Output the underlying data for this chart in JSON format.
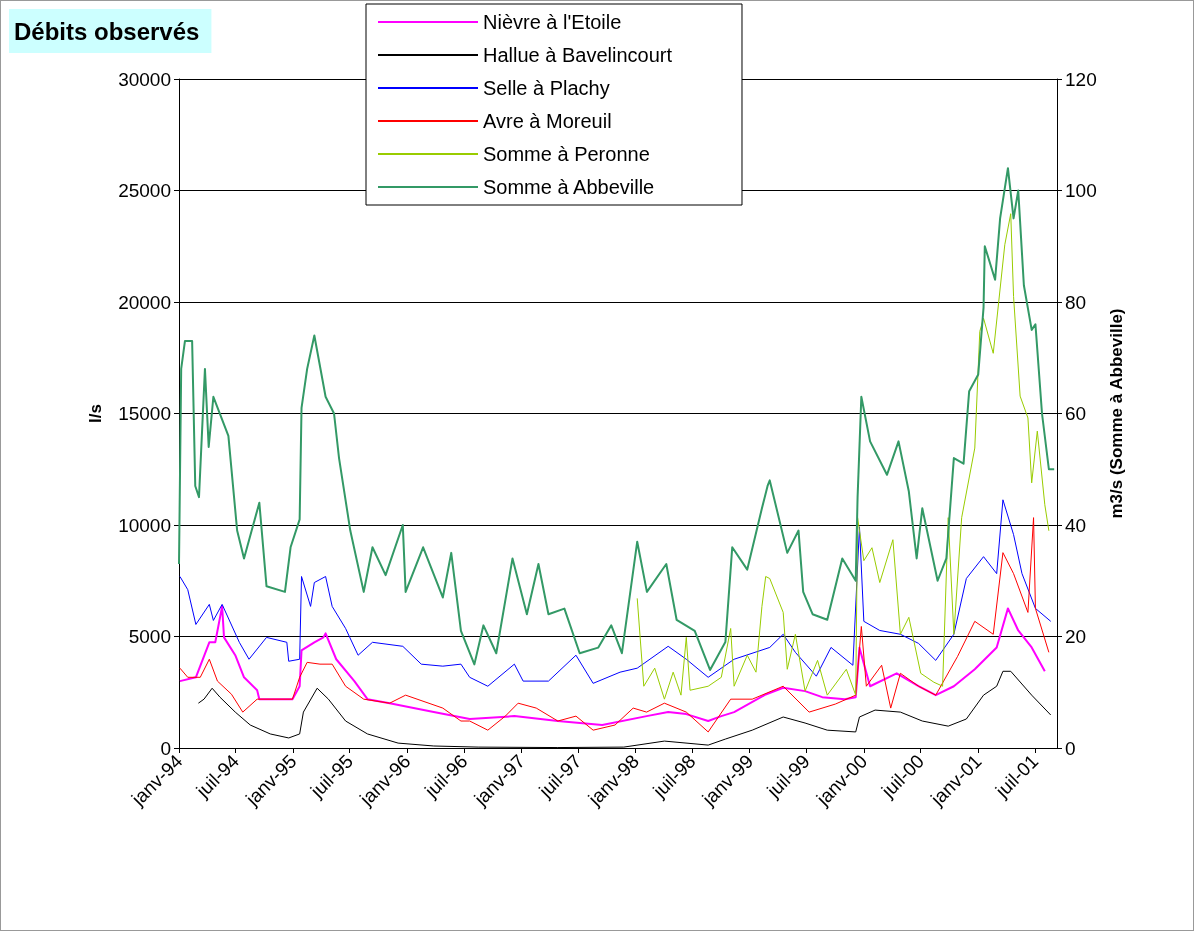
{
  "chart_data": {
    "type": "line",
    "title": "Débits observés",
    "ylabel": "l/s",
    "y2label": "m3/s (Somme à Abbeville)",
    "xlim": [
      "1994-01-01",
      "2001-09-10"
    ],
    "xticks": [
      {
        "value": "1994-01-01",
        "label": "janv-94"
      },
      {
        "value": "1994-07-01",
        "label": "juil-94"
      },
      {
        "value": "1995-01-01",
        "label": "janv-95"
      },
      {
        "value": "1995-07-01",
        "label": "juil-95"
      },
      {
        "value": "1996-01-01",
        "label": "janv-96"
      },
      {
        "value": "1996-07-01",
        "label": "juil-96"
      },
      {
        "value": "1997-01-01",
        "label": "janv-97"
      },
      {
        "value": "1997-07-01",
        "label": "juil-97"
      },
      {
        "value": "1998-01-01",
        "label": "janv-98"
      },
      {
        "value": "1998-07-01",
        "label": "juil-98"
      },
      {
        "value": "1999-01-01",
        "label": "janv-99"
      },
      {
        "value": "1999-07-01",
        "label": "juil-99"
      },
      {
        "value": "2000-01-01",
        "label": "janv-00"
      },
      {
        "value": "2000-07-01",
        "label": "juil-00"
      },
      {
        "value": "2001-01-01",
        "label": "janv-01"
      },
      {
        "value": "2001-07-01",
        "label": "juil-01"
      }
    ],
    "ylim": [
      0,
      30000
    ],
    "yticks": [
      0,
      5000,
      10000,
      15000,
      20000,
      25000,
      30000
    ],
    "y2lim": [
      0,
      120
    ],
    "y2ticks": [
      0,
      20,
      40,
      60,
      80,
      100,
      120
    ],
    "grid": "y",
    "legend": "top",
    "marker": "none",
    "line_style": "solid",
    "series": [
      {
        "name": "Nièvre à l'Etoile",
        "color": "#ff00ff",
        "x": [
          "1994-01-04",
          "1994-02-24",
          "1994-04-08",
          "1994-04-27",
          "1994-05-19",
          "1994-05-25",
          "1994-06-30",
          "1994-07-28",
          "1994-09-08",
          "1994-09-15",
          "1994-12-30",
          "1995-01-22",
          "1995-01-28",
          "1995-03-10",
          "1995-04-08",
          "1995-04-15",
          "1995-05-19",
          "1995-07-16",
          "1995-08-27",
          "1995-11-06",
          "1996-03-26",
          "1996-07-19",
          "1996-12-09",
          "1997-04-27",
          "1997-09-16",
          "1998-02-05",
          "1998-04-15",
          "1998-06-12",
          "1998-08-21",
          "1998-10-02",
          "1998-11-12",
          "1999-02-21",
          "1999-04-18",
          "1999-06-27",
          "1999-08-21",
          "1999-11-01",
          "1999-12-06",
          "1999-12-18",
          "2000-01-21",
          "2000-04-15",
          "2000-06-24",
          "2000-08-18",
          "2000-10-15",
          "2000-12-21",
          "2001-03-01",
          "2001-04-06",
          "2001-05-09",
          "2001-06-21",
          "2001-08-02"
        ],
        "values": [
          3000,
          3170,
          4740,
          4740,
          6350,
          4960,
          4160,
          3170,
          2590,
          2190,
          2190,
          2770,
          4380,
          4740,
          4960,
          5140,
          3980,
          3000,
          2190,
          2010,
          1610,
          1300,
          1430,
          1210,
          1030,
          1430,
          1610,
          1520,
          1210,
          1430,
          1610,
          2400,
          2700,
          2550,
          2280,
          2190,
          2280,
          4500,
          2770,
          3350,
          2770,
          2370,
          2770,
          3530,
          4510,
          6260,
          5270,
          4510,
          3440
        ]
      },
      {
        "name": "Hallue à Bavelincourt",
        "color": "#000000",
        "x": [
          "1994-03-04",
          "1994-03-22",
          "1994-04-17",
          "1994-05-12",
          "1994-06-30",
          "1994-08-17",
          "1994-10-20",
          "1994-12-18",
          "1995-01-22",
          "1995-02-03",
          "1995-03-19",
          "1995-04-24",
          "1995-06-18",
          "1995-08-27",
          "1995-12-03",
          "1996-03-26",
          "1996-08-15",
          "1997-04-27",
          "1997-11-24",
          "1998-04-03",
          "1998-08-21",
          "1998-10-15",
          "1999-01-09",
          "1999-04-18",
          "1999-06-27",
          "1999-09-06",
          "1999-12-06",
          "1999-12-18",
          "2000-02-06",
          "2000-04-27",
          "2000-07-06",
          "2000-09-27",
          "2000-11-24",
          "2001-01-18",
          "2001-03-01",
          "2001-03-21",
          "2001-04-15",
          "2001-06-21",
          "2001-08-21"
        ],
        "values": [
          2010,
          2190,
          2680,
          2280,
          1610,
          1030,
          630,
          450,
          630,
          1610,
          2680,
          2190,
          1210,
          630,
          220,
          90,
          40,
          20,
          40,
          310,
          130,
          400,
          800,
          1390,
          1120,
          800,
          720,
          1390,
          1700,
          1610,
          1210,
          980,
          1300,
          2370,
          2770,
          3440,
          3440,
          2370,
          1480
        ]
      },
      {
        "name": "Selle à Plachy",
        "color": "#0000ff",
        "x": [
          "1994-01-04",
          "1994-01-29",
          "1994-02-24",
          "1994-04-08",
          "1994-04-21",
          "1994-05-19",
          "1994-07-13",
          "1994-08-13",
          "1994-10-08",
          "1994-12-12",
          "1994-12-18",
          "1995-01-22",
          "1995-01-28",
          "1995-02-26",
          "1995-03-10",
          "1995-04-15",
          "1995-05-06",
          "1995-06-18",
          "1995-07-28",
          "1995-09-12",
          "1995-12-18",
          "1996-02-15",
          "1996-04-24",
          "1996-06-21",
          "1996-07-19",
          "1996-09-15",
          "1996-12-09",
          "1997-01-06",
          "1997-03-28",
          "1997-06-24",
          "1997-08-18",
          "1997-11-12",
          "1998-01-06",
          "1998-04-15",
          "1998-06-12",
          "1998-08-21",
          "1998-11-12",
          "1999-03-06",
          "1999-04-18",
          "1999-05-27",
          "1999-08-02",
          "1999-09-18",
          "1999-11-27",
          "1999-12-18",
          "2000-01-01",
          "2000-02-21",
          "2000-04-27",
          "2000-06-24",
          "2000-08-18",
          "2000-10-15",
          "2000-11-24",
          "2001-01-18",
          "2001-03-01",
          "2001-03-21",
          "2001-04-24",
          "2001-05-21",
          "2001-07-03",
          "2001-08-21"
        ],
        "values": [
          7690,
          7100,
          5540,
          6440,
          5720,
          6440,
          4740,
          3980,
          4960,
          4740,
          3890,
          3980,
          7690,
          6350,
          7420,
          7690,
          6350,
          5360,
          4160,
          4740,
          4560,
          3760,
          3670,
          3760,
          3170,
          2770,
          3760,
          3000,
          3000,
          4160,
          2900,
          3400,
          3580,
          4560,
          3980,
          3170,
          3980,
          4510,
          5100,
          4290,
          3220,
          4510,
          3710,
          9920,
          5680,
          5270,
          5100,
          4690,
          3930,
          5100,
          7600,
          8580,
          7820,
          11130,
          9570,
          7820,
          6260,
          5680
        ]
      },
      {
        "name": "Avre à Moreuil",
        "color": "#ff0000",
        "x": [
          "1994-01-04",
          "1994-01-29",
          "1994-03-10",
          "1994-04-08",
          "1994-05-04",
          "1994-06-18",
          "1994-07-24",
          "1994-09-08",
          "1994-12-30",
          "1995-01-22",
          "1995-02-15",
          "1995-03-28",
          "1995-05-06",
          "1995-06-18",
          "1995-08-15",
          "1995-11-06",
          "1995-12-27",
          "1996-04-24",
          "1996-06-21",
          "1996-07-19",
          "1996-09-15",
          "1996-11-10",
          "1996-12-21",
          "1997-02-17",
          "1997-04-27",
          "1997-06-24",
          "1997-08-18",
          "1997-10-27",
          "1997-12-24",
          "1998-02-05",
          "1998-04-03",
          "1998-06-12",
          "1998-08-21",
          "1998-11-01",
          "1999-01-09",
          "1999-04-18",
          "1999-07-10",
          "1999-10-02",
          "1999-12-06",
          "1999-12-24",
          "2000-01-09",
          "2000-02-27",
          "2000-03-27",
          "2000-04-27",
          "2000-06-24",
          "2000-08-18",
          "2000-10-27",
          "2000-12-21",
          "2001-02-18",
          "2001-03-21",
          "2001-04-24",
          "2001-06-09",
          "2001-06-27",
          "2001-07-03",
          "2001-08-15"
        ],
        "values": [
          3580,
          3170,
          3170,
          3980,
          3000,
          2410,
          1610,
          2190,
          2190,
          3170,
          3840,
          3760,
          3760,
          2770,
          2190,
          2010,
          2370,
          1790,
          1210,
          1210,
          800,
          1430,
          2010,
          1790,
          1210,
          1430,
          800,
          1030,
          1790,
          1610,
          2010,
          1610,
          720,
          2190,
          2190,
          2770,
          1610,
          1970,
          2370,
          5450,
          2770,
          3710,
          1790,
          3350,
          2770,
          2370,
          4110,
          5680,
          5100,
          8760,
          7820,
          6080,
          10330,
          6260,
          4290
        ]
      },
      {
        "name": "Somme à Peronne",
        "color": "#99cc00",
        "x": [
          "1998-01-06",
          "1998-01-27",
          "1998-03-03",
          "1998-04-03",
          "1998-05-01",
          "1998-05-26",
          "1998-06-12",
          "1998-06-24",
          "1998-08-21",
          "1998-10-02",
          "1998-11-01",
          "1998-11-12",
          "1998-12-24",
          "1999-01-21",
          "1999-02-09",
          "1999-02-21",
          "1999-03-06",
          "1999-04-18",
          "1999-05-01",
          "1999-05-27",
          "1999-06-27",
          "1999-08-06",
          "1999-09-06",
          "1999-11-06",
          "1999-12-06",
          "1999-12-12",
          "2000-01-01",
          "2000-01-27",
          "2000-02-21",
          "2000-04-03",
          "2000-04-27",
          "2000-05-24",
          "2000-07-01",
          "2000-08-12",
          "2000-09-09",
          "2000-09-27",
          "2000-10-15",
          "2000-11-09",
          "2000-12-21",
          "2001-01-06",
          "2001-01-18",
          "2001-02-18",
          "2001-03-27",
          "2001-04-15",
          "2001-04-24",
          "2001-05-15",
          "2001-06-09",
          "2001-06-21",
          "2001-07-09",
          "2001-08-02",
          "2001-08-15"
        ],
        "values": [
          6710,
          2770,
          3580,
          2190,
          3400,
          2370,
          4960,
          2590,
          2770,
          3170,
          5360,
          2770,
          4160,
          3400,
          6350,
          7690,
          7600,
          6080,
          3530,
          5100,
          2550,
          3930,
          2370,
          3530,
          2370,
          10330,
          8400,
          8980,
          7420,
          9340,
          5100,
          5860,
          3350,
          2950,
          2770,
          10330,
          5100,
          10330,
          13450,
          18680,
          19270,
          17700,
          22570,
          23960,
          20250,
          15780,
          14800,
          11890,
          14210,
          10910,
          9740
        ]
      },
      {
        "name": "Somme à Abbeville",
        "color": "#339966",
        "axis": "y2",
        "x": [
          "1994-01-01",
          "1994-01-08",
          "1994-01-20",
          "1994-02-12",
          "1994-02-22",
          "1994-03-06",
          "1994-03-25",
          "1994-04-06",
          "1994-04-21",
          "1994-06-08",
          "1994-07-06",
          "1994-07-28",
          "1994-09-15",
          "1994-10-08",
          "1994-12-06",
          "1994-12-24",
          "1995-01-22",
          "1995-01-28",
          "1995-02-15",
          "1995-03-10",
          "1995-04-15",
          "1995-05-12",
          "1995-05-28",
          "1995-07-03",
          "1995-08-15",
          "1995-09-12",
          "1995-10-24",
          "1995-12-18",
          "1995-12-27",
          "1996-02-21",
          "1996-04-24",
          "1996-05-21",
          "1996-06-21",
          "1996-08-03",
          "1996-09-01",
          "1996-10-12",
          "1996-12-03",
          "1997-01-18",
          "1997-02-24",
          "1997-03-28",
          "1997-05-18",
          "1997-07-06",
          "1997-09-03",
          "1997-10-15",
          "1997-11-18",
          "1998-01-06",
          "1998-02-06",
          "1998-04-09",
          "1998-05-12",
          "1998-07-09",
          "1998-08-27",
          "1998-10-15",
          "1998-11-06",
          "1998-12-24",
          "1999-02-09",
          "1999-02-27",
          "1999-03-06",
          "1999-05-01",
          "1999-06-06",
          "1999-06-21",
          "1999-07-21",
          "1999-09-06",
          "1999-10-24",
          "1999-12-06",
          "1999-12-12",
          "1999-12-24",
          "2000-01-21",
          "2000-03-15",
          "2000-04-21",
          "2000-05-24",
          "2000-06-18",
          "2000-07-06",
          "2000-08-24",
          "2000-09-21",
          "2000-10-15",
          "2000-11-15",
          "2000-12-03",
          "2001-01-01",
          "2001-01-18",
          "2001-01-22",
          "2001-02-24",
          "2001-03-12",
          "2001-04-06",
          "2001-04-24",
          "2001-05-09",
          "2001-05-27",
          "2001-06-21",
          "2001-07-03",
          "2001-07-24",
          "2001-08-15",
          "2001-09-01"
        ],
        "values": [
          33,
          68,
          73,
          73,
          47,
          45,
          68,
          54,
          63,
          56,
          39,
          34,
          44,
          29,
          28,
          36,
          41,
          61,
          68,
          74,
          63,
          60,
          52,
          39,
          28,
          36,
          31,
          40,
          28,
          36,
          27,
          35,
          21,
          15,
          22,
          17,
          34,
          24,
          33,
          24,
          25,
          17,
          18,
          22,
          17,
          37,
          28,
          33,
          23,
          21,
          14,
          19,
          36,
          32,
          43,
          47,
          48,
          35,
          39,
          28,
          24,
          23,
          34,
          30,
          45,
          63,
          55,
          49,
          55,
          46,
          34,
          43,
          30,
          34,
          52,
          51,
          64,
          67,
          79,
          90,
          84,
          95,
          104,
          95,
          100,
          83,
          75,
          76,
          60,
          50,
          50
        ]
      }
    ]
  }
}
